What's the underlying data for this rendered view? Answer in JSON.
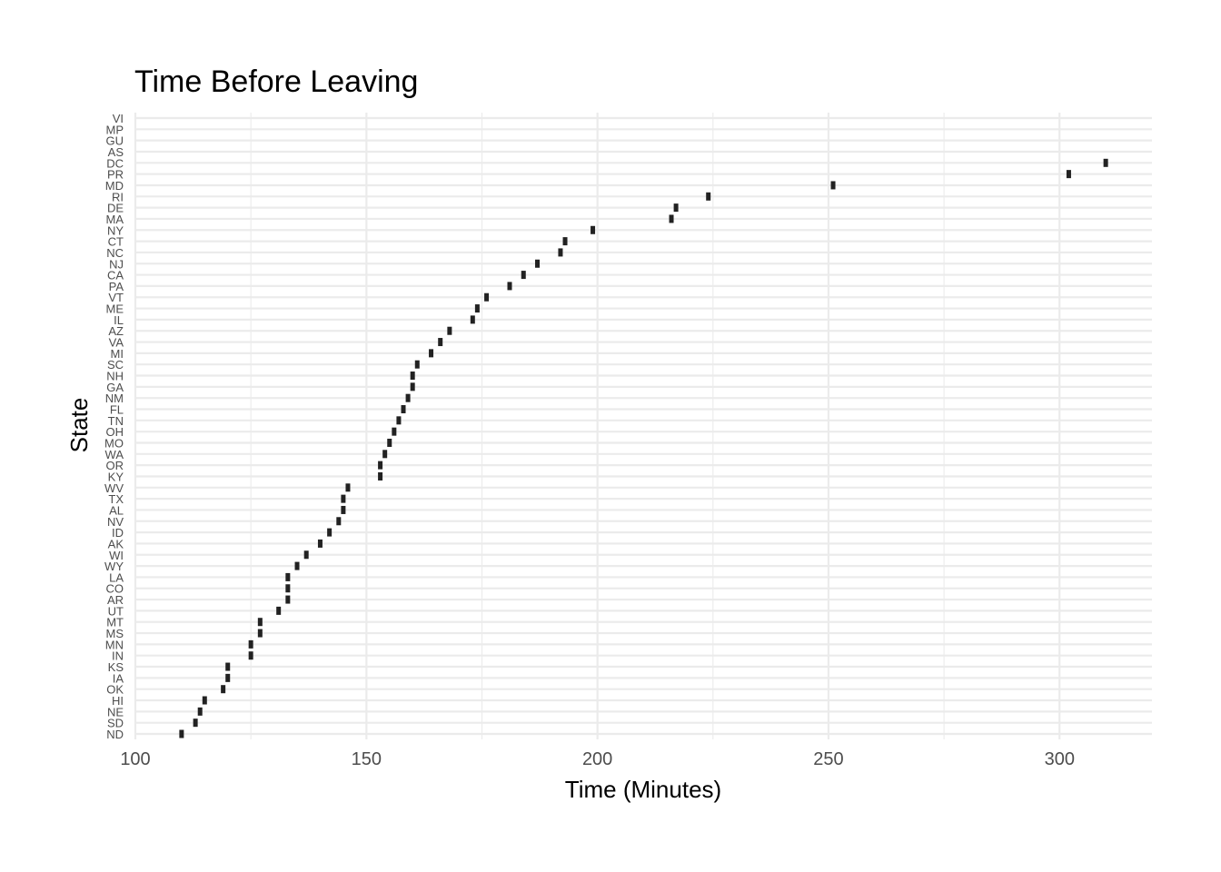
{
  "chart_data": {
    "type": "scatter",
    "title": "Time Before Leaving",
    "xlabel": "Time (Minutes)",
    "ylabel": "State",
    "xlim": [
      100,
      320
    ],
    "x_ticks": [
      100,
      150,
      200,
      250,
      300
    ],
    "grid": true,
    "legend": "none",
    "categories": [
      "ND",
      "SD",
      "NE",
      "HI",
      "OK",
      "IA",
      "KS",
      "IN",
      "MN",
      "MS",
      "MT",
      "UT",
      "AR",
      "CO",
      "LA",
      "WY",
      "WI",
      "AK",
      "ID",
      "NV",
      "AL",
      "TX",
      "WV",
      "KY",
      "OR",
      "WA",
      "MO",
      "OH",
      "TN",
      "FL",
      "NM",
      "GA",
      "NH",
      "SC",
      "MI",
      "VA",
      "AZ",
      "IL",
      "ME",
      "VT",
      "PA",
      "CA",
      "NJ",
      "NC",
      "CT",
      "NY",
      "MA",
      "DE",
      "RI",
      "MD",
      "PR",
      "DC",
      "AS",
      "GU",
      "MP",
      "VI"
    ],
    "values": [
      110,
      113,
      114,
      115,
      119,
      120,
      120,
      125,
      125,
      127,
      127,
      131,
      133,
      133,
      133,
      135,
      137,
      140,
      142,
      144,
      145,
      145,
      146,
      153,
      153,
      154,
      155,
      156,
      157,
      158,
      159,
      160,
      160,
      161,
      164,
      166,
      168,
      173,
      174,
      176,
      181,
      184,
      187,
      192,
      193,
      199,
      216,
      217,
      224,
      251,
      302,
      310,
      null,
      null,
      null,
      null
    ],
    "colors": {
      "mark": "#222222",
      "grid": "#ebebeb",
      "text": "#4d4d4d"
    }
  }
}
